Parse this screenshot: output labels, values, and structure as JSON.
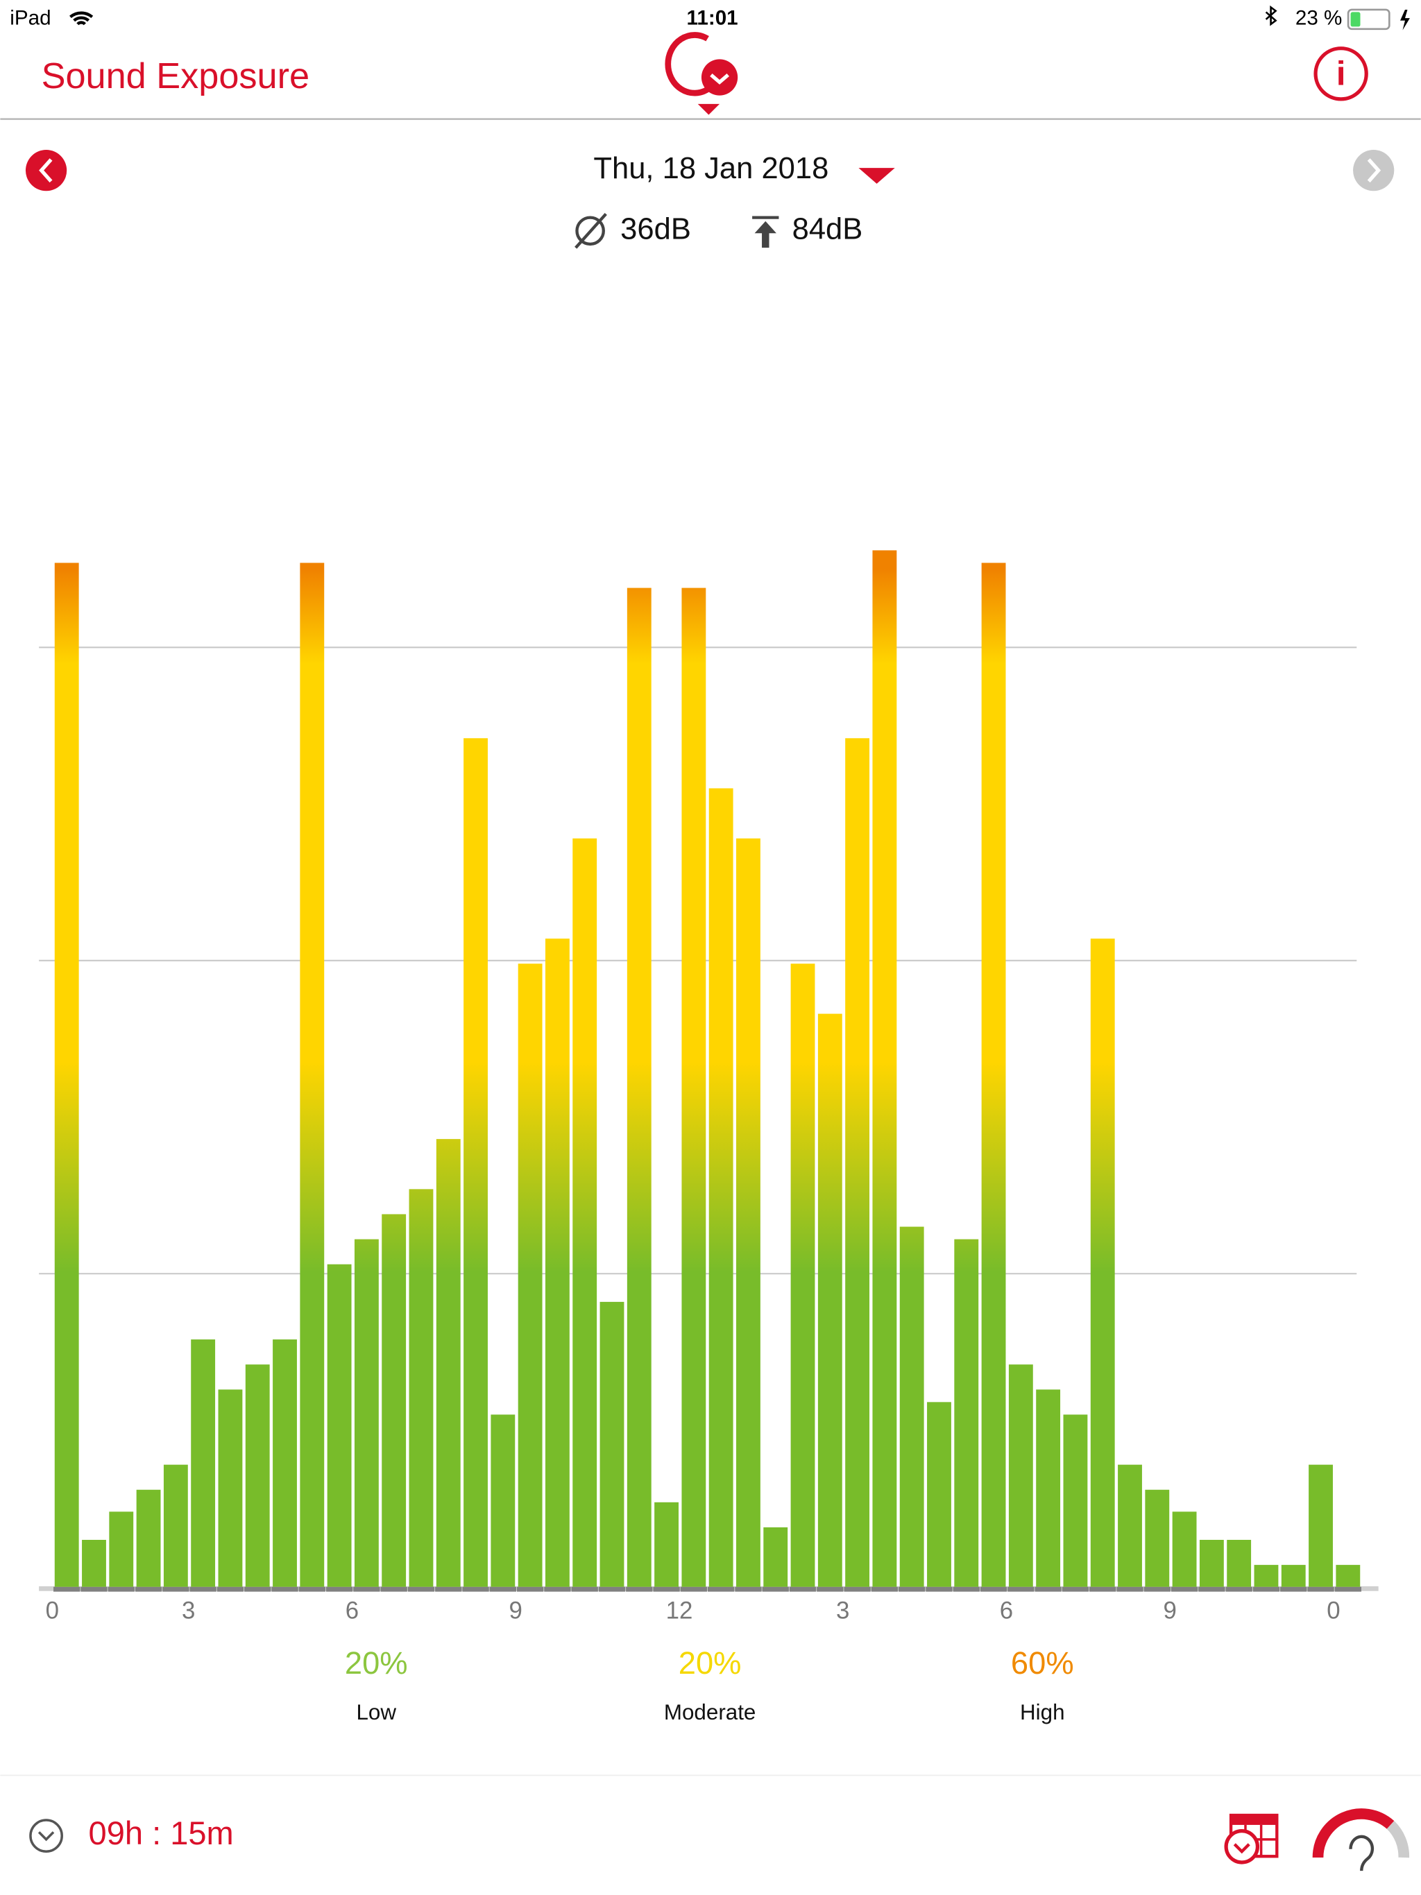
{
  "status_bar": {
    "device": "iPad",
    "time": "11:01",
    "battery": "23 %"
  },
  "header": {
    "title": "Sound Exposure"
  },
  "date_nav": {
    "date": "Thu, 18 Jan 2018",
    "average": "36dB",
    "peak": "84dB"
  },
  "chart_data": {
    "type": "bar",
    "categories": [
      "0",
      null,
      null,
      null,
      null,
      "3",
      null,
      null,
      null,
      null,
      null,
      "6",
      null,
      null,
      null,
      null,
      null,
      "9",
      null,
      null,
      null,
      null,
      null,
      "12",
      null,
      null,
      null,
      null,
      null,
      "3",
      null,
      null,
      null,
      null,
      null,
      "6",
      null,
      null,
      null,
      null,
      null,
      "9",
      null,
      null,
      null,
      null,
      null,
      "0"
    ],
    "values": [
      3.27,
      0.15,
      0.24,
      0.31,
      0.39,
      0.79,
      0.63,
      0.71,
      0.79,
      3.27,
      1.03,
      1.11,
      1.19,
      1.27,
      1.43,
      2.71,
      0.55,
      1.99,
      2.07,
      2.39,
      0.91,
      3.19,
      0.27,
      3.19,
      2.55,
      2.39,
      0.19,
      1.99,
      1.83,
      2.71,
      3.31,
      1.15,
      0.59,
      1.11,
      3.27,
      0.71,
      0.63,
      0.55,
      2.07,
      0.39,
      0.31,
      0.24,
      0.15,
      0.15,
      0.07,
      0.07,
      0.39,
      0.07
    ],
    "colors": {
      "low": "#78bc2a",
      "moderate": "#ffd500",
      "high": "#f08200"
    },
    "ylim": [
      0,
      3.35
    ],
    "yticks": [
      1,
      2,
      3
    ],
    "grid": true
  },
  "summary": [
    {
      "percent": "20%",
      "label": "Low",
      "color": "#8cc63f"
    },
    {
      "percent": "20%",
      "label": "Moderate",
      "color": "#f5d800"
    },
    {
      "percent": "60%",
      "label": "High",
      "color": "#f08a00"
    }
  ],
  "footer": {
    "duration": "09h : 15m"
  }
}
